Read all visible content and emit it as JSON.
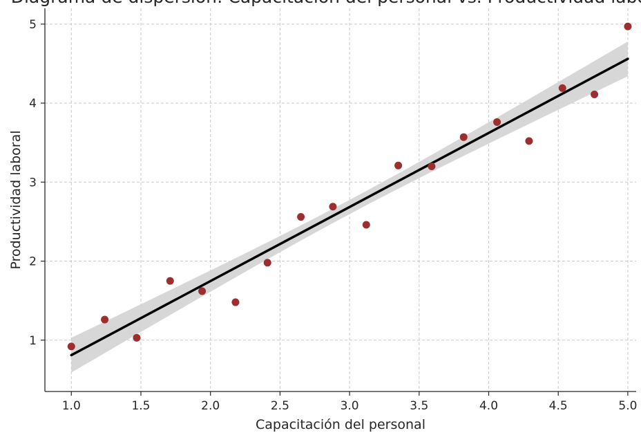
{
  "chart_data": {
    "type": "scatter",
    "title": "Diagrama de dispersión: Capacitación del personal vs. Productividad laboral",
    "xlabel": "Capacitación del personal",
    "ylabel": "Productividad laboral",
    "xlim": [
      0.81,
      5.06
    ],
    "ylim": [
      0.35,
      5.2
    ],
    "xticks": [
      "1.0",
      "1.5",
      "2.0",
      "2.5",
      "3.0",
      "3.5",
      "4.0",
      "4.5",
      "5.0"
    ],
    "yticks": [
      "1",
      "2",
      "3",
      "4",
      "5"
    ],
    "grid": true,
    "colors": {
      "points": "#9b2f2f",
      "regression": "#000000",
      "confidence_band": "#d3d3d3",
      "grid": "#c8c8c8"
    },
    "points": [
      {
        "x": 1.0,
        "y": 0.92
      },
      {
        "x": 1.24,
        "y": 1.26
      },
      {
        "x": 1.47,
        "y": 1.03
      },
      {
        "x": 1.71,
        "y": 1.75
      },
      {
        "x": 1.94,
        "y": 1.62
      },
      {
        "x": 2.18,
        "y": 1.48
      },
      {
        "x": 2.41,
        "y": 1.98
      },
      {
        "x": 2.65,
        "y": 2.56
      },
      {
        "x": 2.88,
        "y": 2.69
      },
      {
        "x": 3.12,
        "y": 2.46
      },
      {
        "x": 3.35,
        "y": 3.21
      },
      {
        "x": 3.59,
        "y": 3.2
      },
      {
        "x": 3.82,
        "y": 3.57
      },
      {
        "x": 4.06,
        "y": 3.76
      },
      {
        "x": 4.29,
        "y": 3.52
      },
      {
        "x": 4.53,
        "y": 4.19
      },
      {
        "x": 4.76,
        "y": 4.11
      },
      {
        "x": 5.0,
        "y": 4.97
      }
    ],
    "regression": {
      "x": [
        1.0,
        5.0
      ],
      "y": [
        0.81,
        4.56
      ],
      "band_halfwidth_at_ends": 0.22,
      "band_halfwidth_at_center": 0.09
    }
  }
}
